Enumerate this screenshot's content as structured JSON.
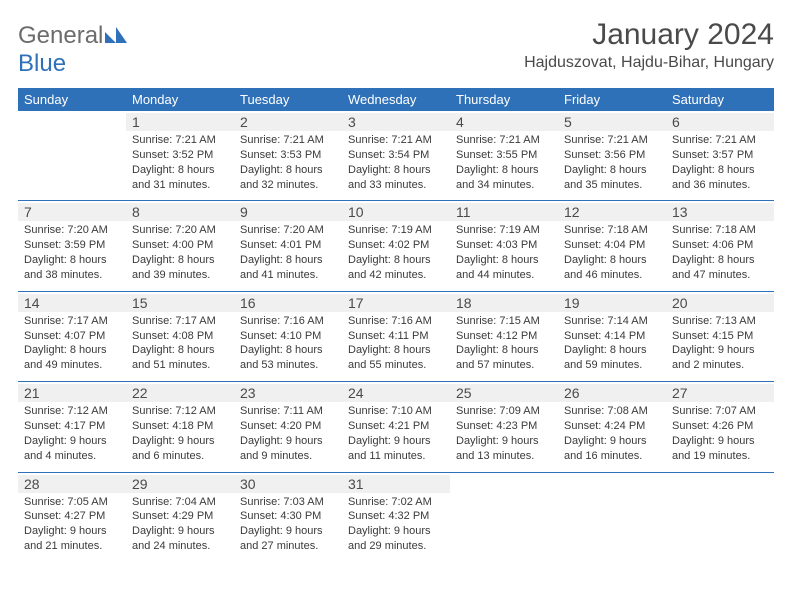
{
  "logo": {
    "text1": "General",
    "text2": "Blue",
    "color1": "#6c6c6c",
    "color2": "#2f71b8"
  },
  "title": "January 2024",
  "location": "Hajduszovat, Hajdu-Bihar, Hungary",
  "header_bg": "#2f71b8",
  "header_fg": "#ffffff",
  "daynum_bg": "#f0f0f0",
  "rule_color": "#2f71b8",
  "font_family": "Arial, Helvetica, sans-serif",
  "weekdays": [
    "Sunday",
    "Monday",
    "Tuesday",
    "Wednesday",
    "Thursday",
    "Friday",
    "Saturday"
  ],
  "weeks": [
    [
      {
        "n": "",
        "sr": "",
        "ss": "",
        "dl": ""
      },
      {
        "n": "1",
        "sr": "Sunrise: 7:21 AM",
        "ss": "Sunset: 3:52 PM",
        "dl": "Daylight: 8 hours and 31 minutes."
      },
      {
        "n": "2",
        "sr": "Sunrise: 7:21 AM",
        "ss": "Sunset: 3:53 PM",
        "dl": "Daylight: 8 hours and 32 minutes."
      },
      {
        "n": "3",
        "sr": "Sunrise: 7:21 AM",
        "ss": "Sunset: 3:54 PM",
        "dl": "Daylight: 8 hours and 33 minutes."
      },
      {
        "n": "4",
        "sr": "Sunrise: 7:21 AM",
        "ss": "Sunset: 3:55 PM",
        "dl": "Daylight: 8 hours and 34 minutes."
      },
      {
        "n": "5",
        "sr": "Sunrise: 7:21 AM",
        "ss": "Sunset: 3:56 PM",
        "dl": "Daylight: 8 hours and 35 minutes."
      },
      {
        "n": "6",
        "sr": "Sunrise: 7:21 AM",
        "ss": "Sunset: 3:57 PM",
        "dl": "Daylight: 8 hours and 36 minutes."
      }
    ],
    [
      {
        "n": "7",
        "sr": "Sunrise: 7:20 AM",
        "ss": "Sunset: 3:59 PM",
        "dl": "Daylight: 8 hours and 38 minutes."
      },
      {
        "n": "8",
        "sr": "Sunrise: 7:20 AM",
        "ss": "Sunset: 4:00 PM",
        "dl": "Daylight: 8 hours and 39 minutes."
      },
      {
        "n": "9",
        "sr": "Sunrise: 7:20 AM",
        "ss": "Sunset: 4:01 PM",
        "dl": "Daylight: 8 hours and 41 minutes."
      },
      {
        "n": "10",
        "sr": "Sunrise: 7:19 AM",
        "ss": "Sunset: 4:02 PM",
        "dl": "Daylight: 8 hours and 42 minutes."
      },
      {
        "n": "11",
        "sr": "Sunrise: 7:19 AM",
        "ss": "Sunset: 4:03 PM",
        "dl": "Daylight: 8 hours and 44 minutes."
      },
      {
        "n": "12",
        "sr": "Sunrise: 7:18 AM",
        "ss": "Sunset: 4:04 PM",
        "dl": "Daylight: 8 hours and 46 minutes."
      },
      {
        "n": "13",
        "sr": "Sunrise: 7:18 AM",
        "ss": "Sunset: 4:06 PM",
        "dl": "Daylight: 8 hours and 47 minutes."
      }
    ],
    [
      {
        "n": "14",
        "sr": "Sunrise: 7:17 AM",
        "ss": "Sunset: 4:07 PM",
        "dl": "Daylight: 8 hours and 49 minutes."
      },
      {
        "n": "15",
        "sr": "Sunrise: 7:17 AM",
        "ss": "Sunset: 4:08 PM",
        "dl": "Daylight: 8 hours and 51 minutes."
      },
      {
        "n": "16",
        "sr": "Sunrise: 7:16 AM",
        "ss": "Sunset: 4:10 PM",
        "dl": "Daylight: 8 hours and 53 minutes."
      },
      {
        "n": "17",
        "sr": "Sunrise: 7:16 AM",
        "ss": "Sunset: 4:11 PM",
        "dl": "Daylight: 8 hours and 55 minutes."
      },
      {
        "n": "18",
        "sr": "Sunrise: 7:15 AM",
        "ss": "Sunset: 4:12 PM",
        "dl": "Daylight: 8 hours and 57 minutes."
      },
      {
        "n": "19",
        "sr": "Sunrise: 7:14 AM",
        "ss": "Sunset: 4:14 PM",
        "dl": "Daylight: 8 hours and 59 minutes."
      },
      {
        "n": "20",
        "sr": "Sunrise: 7:13 AM",
        "ss": "Sunset: 4:15 PM",
        "dl": "Daylight: 9 hours and 2 minutes."
      }
    ],
    [
      {
        "n": "21",
        "sr": "Sunrise: 7:12 AM",
        "ss": "Sunset: 4:17 PM",
        "dl": "Daylight: 9 hours and 4 minutes."
      },
      {
        "n": "22",
        "sr": "Sunrise: 7:12 AM",
        "ss": "Sunset: 4:18 PM",
        "dl": "Daylight: 9 hours and 6 minutes."
      },
      {
        "n": "23",
        "sr": "Sunrise: 7:11 AM",
        "ss": "Sunset: 4:20 PM",
        "dl": "Daylight: 9 hours and 9 minutes."
      },
      {
        "n": "24",
        "sr": "Sunrise: 7:10 AM",
        "ss": "Sunset: 4:21 PM",
        "dl": "Daylight: 9 hours and 11 minutes."
      },
      {
        "n": "25",
        "sr": "Sunrise: 7:09 AM",
        "ss": "Sunset: 4:23 PM",
        "dl": "Daylight: 9 hours and 13 minutes."
      },
      {
        "n": "26",
        "sr": "Sunrise: 7:08 AM",
        "ss": "Sunset: 4:24 PM",
        "dl": "Daylight: 9 hours and 16 minutes."
      },
      {
        "n": "27",
        "sr": "Sunrise: 7:07 AM",
        "ss": "Sunset: 4:26 PM",
        "dl": "Daylight: 9 hours and 19 minutes."
      }
    ],
    [
      {
        "n": "28",
        "sr": "Sunrise: 7:05 AM",
        "ss": "Sunset: 4:27 PM",
        "dl": "Daylight: 9 hours and 21 minutes."
      },
      {
        "n": "29",
        "sr": "Sunrise: 7:04 AM",
        "ss": "Sunset: 4:29 PM",
        "dl": "Daylight: 9 hours and 24 minutes."
      },
      {
        "n": "30",
        "sr": "Sunrise: 7:03 AM",
        "ss": "Sunset: 4:30 PM",
        "dl": "Daylight: 9 hours and 27 minutes."
      },
      {
        "n": "31",
        "sr": "Sunrise: 7:02 AM",
        "ss": "Sunset: 4:32 PM",
        "dl": "Daylight: 9 hours and 29 minutes."
      },
      {
        "n": "",
        "sr": "",
        "ss": "",
        "dl": ""
      },
      {
        "n": "",
        "sr": "",
        "ss": "",
        "dl": ""
      },
      {
        "n": "",
        "sr": "",
        "ss": "",
        "dl": ""
      }
    ]
  ]
}
